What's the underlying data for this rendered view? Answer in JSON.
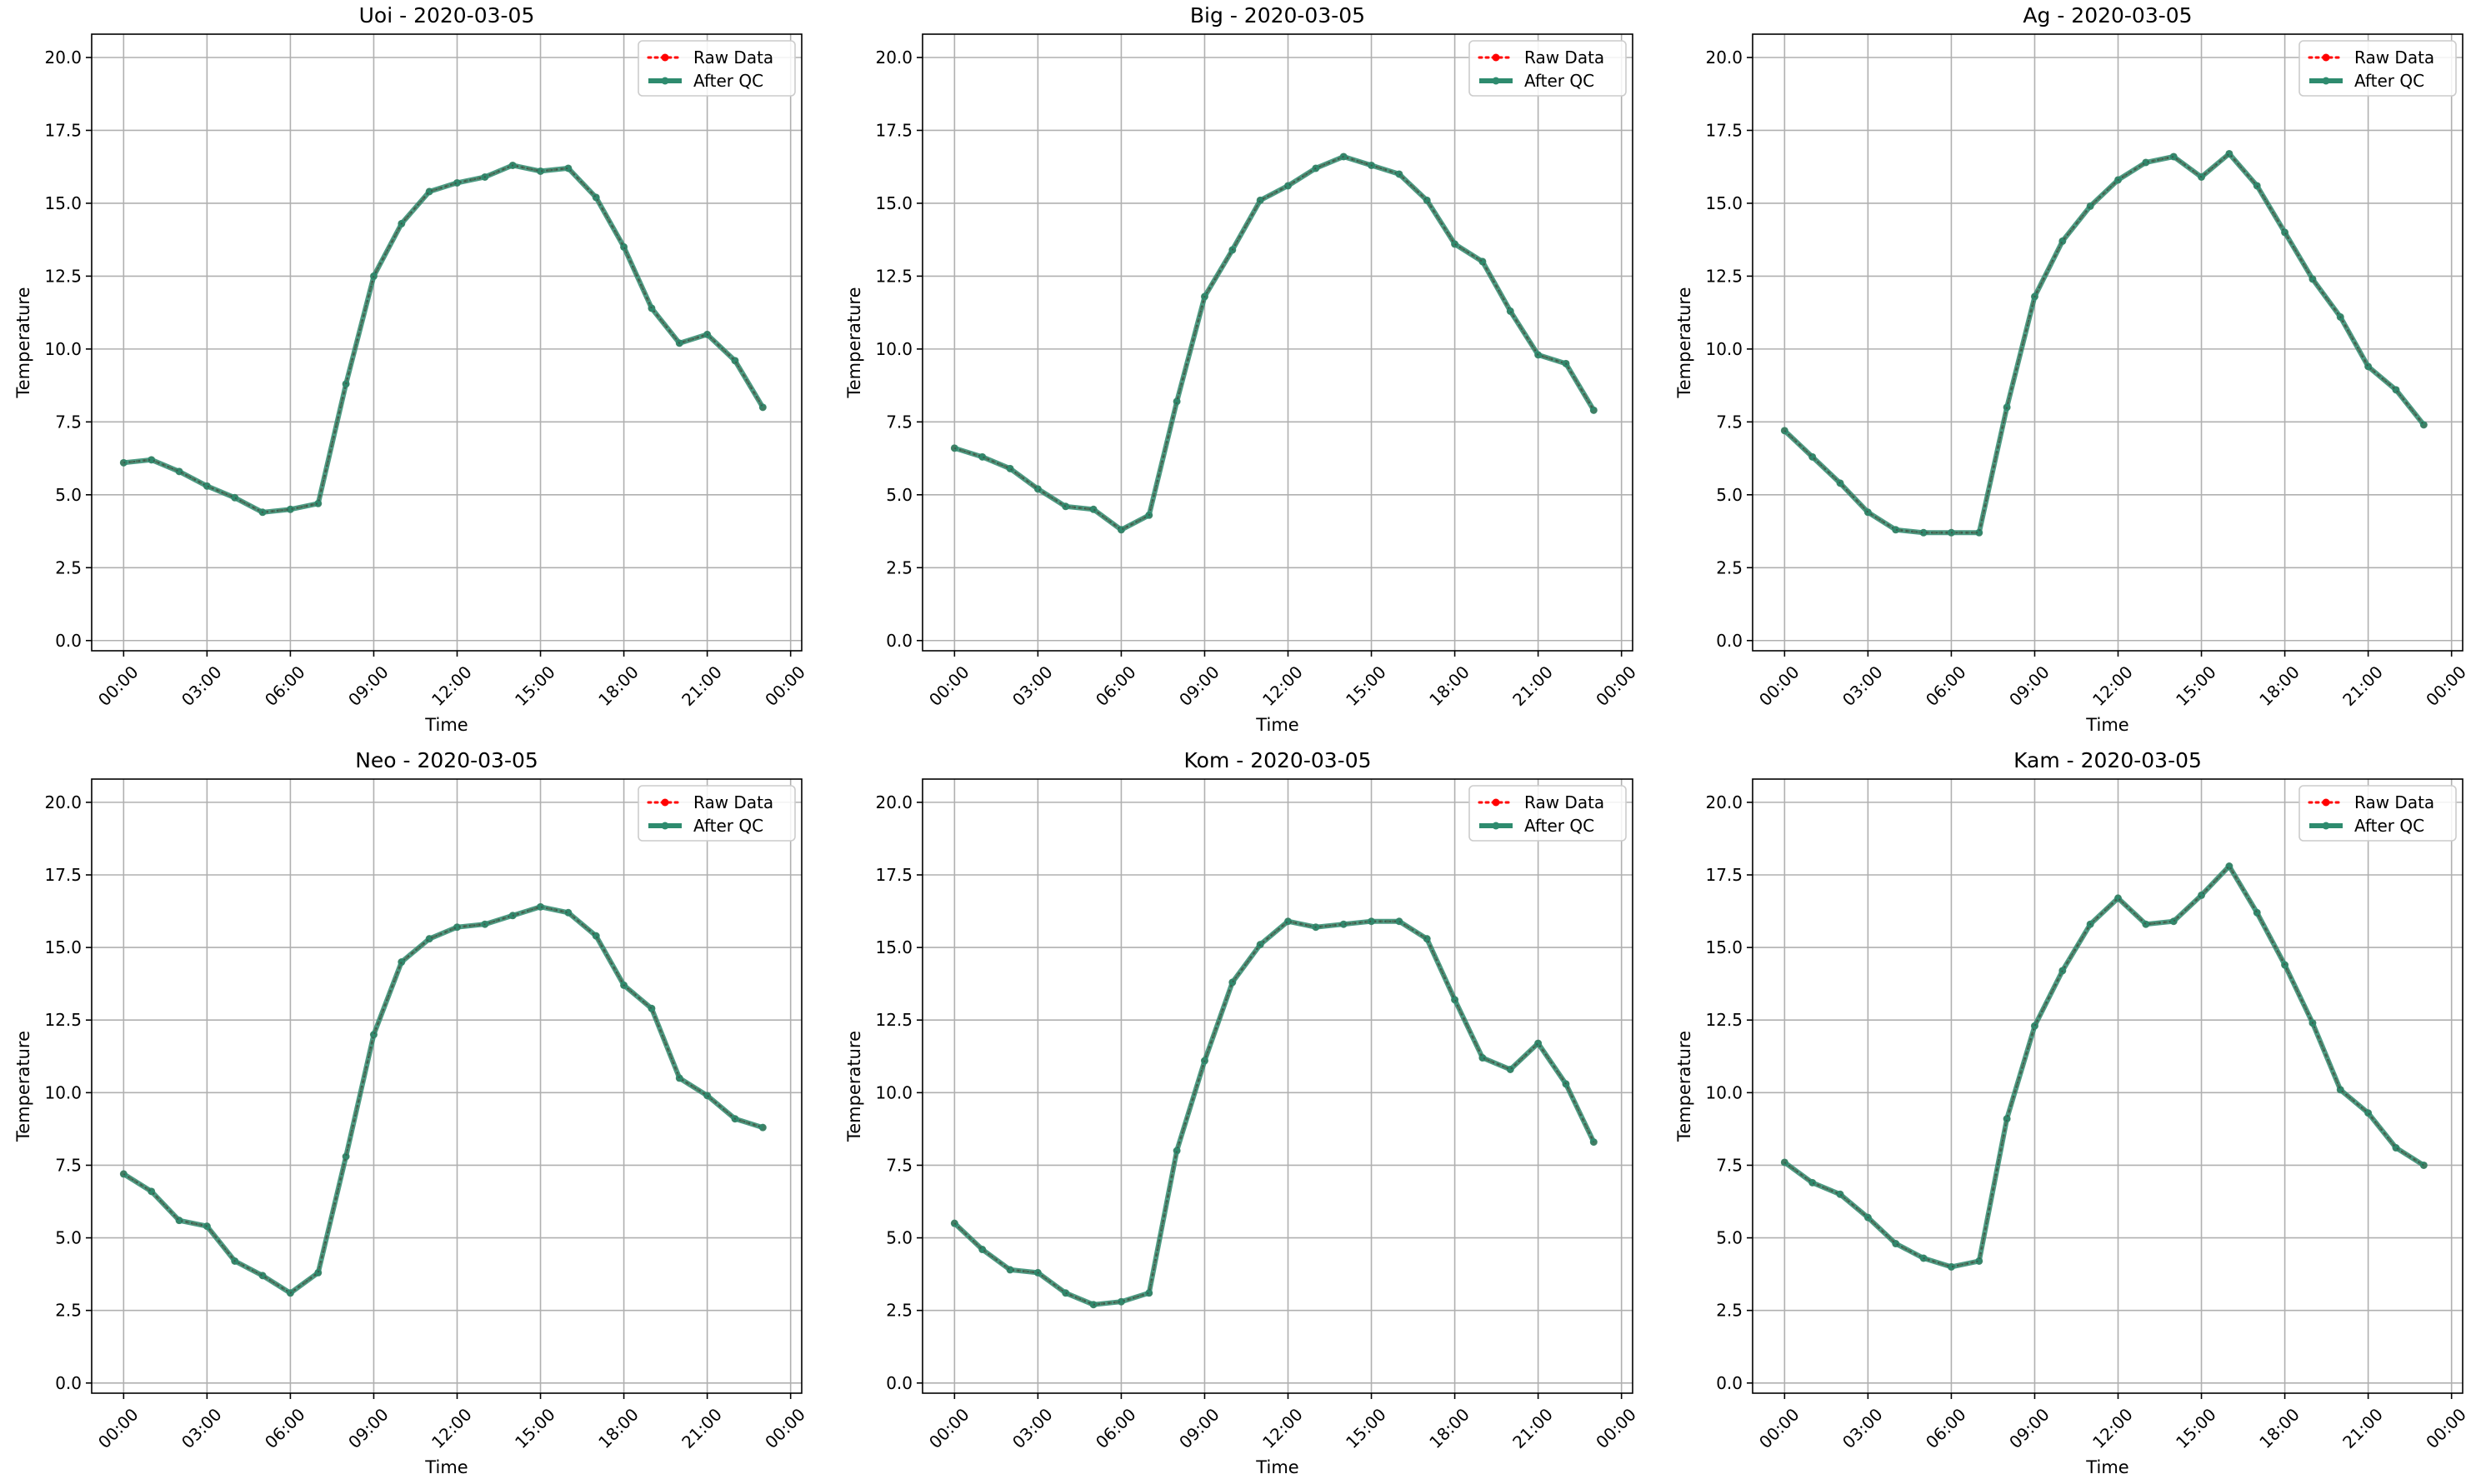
{
  "figure": {
    "background": "#ffffff"
  },
  "legend": {
    "raw_label": "Raw Data",
    "qc_label": "After QC",
    "raw_color": "#ff0000",
    "qc_color": "#2e8b6e",
    "placement": "upper right"
  },
  "chart_data": [
    {
      "type": "line",
      "title": "Uoi - 2020-03-05",
      "xlabel": "Time",
      "ylabel": "Temperature",
      "xticks": [
        "00:00",
        "03:00",
        "06:00",
        "09:00",
        "12:00",
        "15:00",
        "18:00",
        "21:00",
        "00:00"
      ],
      "yticks": [
        "0.0",
        "2.5",
        "5.0",
        "7.5",
        "10.0",
        "12.5",
        "15.0",
        "17.5",
        "20.0"
      ],
      "x_hours": [
        0,
        1,
        2,
        3,
        4,
        5,
        6,
        7,
        8,
        9,
        10,
        11,
        12,
        13,
        14,
        15,
        16,
        17,
        18,
        19,
        20,
        21,
        22,
        23
      ],
      "ylim": [
        -0.35,
        20.8
      ],
      "grid": true,
      "series": [
        {
          "name": "Raw Data",
          "values": [
            6.1,
            6.2,
            5.8,
            5.3,
            4.9,
            4.4,
            4.5,
            4.7,
            8.8,
            12.5,
            14.3,
            15.4,
            15.7,
            15.9,
            16.3,
            16.1,
            16.2,
            15.2,
            13.5,
            11.4,
            10.2,
            10.5,
            9.6,
            8.0
          ]
        },
        {
          "name": "After QC",
          "values": [
            6.1,
            6.2,
            5.8,
            5.3,
            4.9,
            4.4,
            4.5,
            4.7,
            8.8,
            12.5,
            14.3,
            15.4,
            15.7,
            15.9,
            16.3,
            16.1,
            16.2,
            15.2,
            13.5,
            11.4,
            10.2,
            10.5,
            9.6,
            8.0
          ]
        }
      ]
    },
    {
      "type": "line",
      "title": "Big - 2020-03-05",
      "xlabel": "Time",
      "ylabel": "Temperature",
      "xticks": [
        "00:00",
        "03:00",
        "06:00",
        "09:00",
        "12:00",
        "15:00",
        "18:00",
        "21:00",
        "00:00"
      ],
      "yticks": [
        "0.0",
        "2.5",
        "5.0",
        "7.5",
        "10.0",
        "12.5",
        "15.0",
        "17.5",
        "20.0"
      ],
      "x_hours": [
        0,
        1,
        2,
        3,
        4,
        5,
        6,
        7,
        8,
        9,
        10,
        11,
        12,
        13,
        14,
        15,
        16,
        17,
        18,
        19,
        20,
        21,
        22,
        23
      ],
      "ylim": [
        -0.35,
        20.8
      ],
      "grid": true,
      "series": [
        {
          "name": "Raw Data",
          "values": [
            6.6,
            6.3,
            5.9,
            5.2,
            4.6,
            4.5,
            3.8,
            4.3,
            8.2,
            11.8,
            13.4,
            15.1,
            15.6,
            16.2,
            16.6,
            16.3,
            16.0,
            15.1,
            13.6,
            13.0,
            11.3,
            9.8,
            9.5,
            7.9
          ]
        },
        {
          "name": "After QC",
          "values": [
            6.6,
            6.3,
            5.9,
            5.2,
            4.6,
            4.5,
            3.8,
            4.3,
            8.2,
            11.8,
            13.4,
            15.1,
            15.6,
            16.2,
            16.6,
            16.3,
            16.0,
            15.1,
            13.6,
            13.0,
            11.3,
            9.8,
            9.5,
            7.9
          ]
        }
      ]
    },
    {
      "type": "line",
      "title": "Ag - 2020-03-05",
      "xlabel": "Time",
      "ylabel": "Temperature",
      "xticks": [
        "00:00",
        "03:00",
        "06:00",
        "09:00",
        "12:00",
        "15:00",
        "18:00",
        "21:00",
        "00:00"
      ],
      "yticks": [
        "0.0",
        "2.5",
        "5.0",
        "7.5",
        "10.0",
        "12.5",
        "15.0",
        "17.5",
        "20.0"
      ],
      "x_hours": [
        0,
        1,
        2,
        3,
        4,
        5,
        6,
        7,
        8,
        9,
        10,
        11,
        12,
        13,
        14,
        15,
        16,
        17,
        18,
        19,
        20,
        21,
        22,
        23
      ],
      "ylim": [
        -0.35,
        20.8
      ],
      "grid": true,
      "series": [
        {
          "name": "Raw Data",
          "values": [
            7.2,
            6.3,
            5.4,
            4.4,
            3.8,
            3.7,
            3.7,
            3.7,
            8.0,
            11.8,
            13.7,
            14.9,
            15.8,
            16.4,
            16.6,
            15.9,
            16.7,
            15.6,
            14.0,
            12.4,
            11.1,
            9.4,
            8.6,
            7.4
          ]
        },
        {
          "name": "After QC",
          "values": [
            7.2,
            6.3,
            5.4,
            4.4,
            3.8,
            3.7,
            3.7,
            3.7,
            8.0,
            11.8,
            13.7,
            14.9,
            15.8,
            16.4,
            16.6,
            15.9,
            16.7,
            15.6,
            14.0,
            12.4,
            11.1,
            9.4,
            8.6,
            7.4
          ]
        }
      ]
    },
    {
      "type": "line",
      "title": "Neo - 2020-03-05",
      "xlabel": "Time",
      "ylabel": "Temperature",
      "xticks": [
        "00:00",
        "03:00",
        "06:00",
        "09:00",
        "12:00",
        "15:00",
        "18:00",
        "21:00",
        "00:00"
      ],
      "yticks": [
        "0.0",
        "2.5",
        "5.0",
        "7.5",
        "10.0",
        "12.5",
        "15.0",
        "17.5",
        "20.0"
      ],
      "x_hours": [
        0,
        1,
        2,
        3,
        4,
        5,
        6,
        7,
        8,
        9,
        10,
        11,
        12,
        13,
        14,
        15,
        16,
        17,
        18,
        19,
        20,
        21,
        22,
        23
      ],
      "ylim": [
        -0.35,
        20.8
      ],
      "grid": true,
      "series": [
        {
          "name": "Raw Data",
          "values": [
            7.2,
            6.6,
            5.6,
            5.4,
            4.2,
            3.7,
            3.1,
            3.8,
            7.8,
            12.0,
            14.5,
            15.3,
            15.7,
            15.8,
            16.1,
            16.4,
            16.2,
            15.4,
            13.7,
            12.9,
            10.5,
            9.9,
            9.1,
            8.8
          ]
        },
        {
          "name": "After QC",
          "values": [
            7.2,
            6.6,
            5.6,
            5.4,
            4.2,
            3.7,
            3.1,
            3.8,
            7.8,
            12.0,
            14.5,
            15.3,
            15.7,
            15.8,
            16.1,
            16.4,
            16.2,
            15.4,
            13.7,
            12.9,
            10.5,
            9.9,
            9.1,
            8.8
          ]
        }
      ]
    },
    {
      "type": "line",
      "title": "Kom - 2020-03-05",
      "xlabel": "Time",
      "ylabel": "Temperature",
      "xticks": [
        "00:00",
        "03:00",
        "06:00",
        "09:00",
        "12:00",
        "15:00",
        "18:00",
        "21:00",
        "00:00"
      ],
      "yticks": [
        "0.0",
        "2.5",
        "5.0",
        "7.5",
        "10.0",
        "12.5",
        "15.0",
        "17.5",
        "20.0"
      ],
      "x_hours": [
        0,
        1,
        2,
        3,
        4,
        5,
        6,
        7,
        8,
        9,
        10,
        11,
        12,
        13,
        14,
        15,
        16,
        17,
        18,
        19,
        20,
        21,
        22,
        23
      ],
      "ylim": [
        -0.35,
        20.8
      ],
      "grid": true,
      "series": [
        {
          "name": "Raw Data",
          "values": [
            5.5,
            4.6,
            3.9,
            3.8,
            3.1,
            2.7,
            2.8,
            3.1,
            8.0,
            11.1,
            13.8,
            15.1,
            15.9,
            15.7,
            15.8,
            15.9,
            15.9,
            15.3,
            13.2,
            11.2,
            10.8,
            11.7,
            10.3,
            8.3
          ]
        },
        {
          "name": "After QC",
          "values": [
            5.5,
            4.6,
            3.9,
            3.8,
            3.1,
            2.7,
            2.8,
            3.1,
            8.0,
            11.1,
            13.8,
            15.1,
            15.9,
            15.7,
            15.8,
            15.9,
            15.9,
            15.3,
            13.2,
            11.2,
            10.8,
            11.7,
            10.3,
            8.3
          ]
        }
      ]
    },
    {
      "type": "line",
      "title": "Kam - 2020-03-05",
      "xlabel": "Time",
      "ylabel": "Temperature",
      "xticks": [
        "00:00",
        "03:00",
        "06:00",
        "09:00",
        "12:00",
        "15:00",
        "18:00",
        "21:00",
        "00:00"
      ],
      "yticks": [
        "0.0",
        "2.5",
        "5.0",
        "7.5",
        "10.0",
        "12.5",
        "15.0",
        "17.5",
        "20.0"
      ],
      "x_hours": [
        0,
        1,
        2,
        3,
        4,
        5,
        6,
        7,
        8,
        9,
        10,
        11,
        12,
        13,
        14,
        15,
        16,
        17,
        18,
        19,
        20,
        21,
        22,
        23
      ],
      "ylim": [
        -0.35,
        20.8
      ],
      "grid": true,
      "series": [
        {
          "name": "Raw Data",
          "values": [
            7.6,
            6.9,
            6.5,
            5.7,
            4.8,
            4.3,
            4.0,
            4.2,
            9.1,
            12.3,
            14.2,
            15.8,
            16.7,
            15.8,
            15.9,
            16.8,
            17.8,
            16.2,
            14.4,
            12.4,
            10.1,
            9.3,
            8.1,
            7.5
          ]
        },
        {
          "name": "After QC",
          "values": [
            7.6,
            6.9,
            6.5,
            5.7,
            4.8,
            4.3,
            4.0,
            4.2,
            9.1,
            12.3,
            14.2,
            15.8,
            16.7,
            15.8,
            15.9,
            16.8,
            17.8,
            16.2,
            14.4,
            12.4,
            10.1,
            9.3,
            8.1,
            7.5
          ]
        }
      ]
    }
  ]
}
